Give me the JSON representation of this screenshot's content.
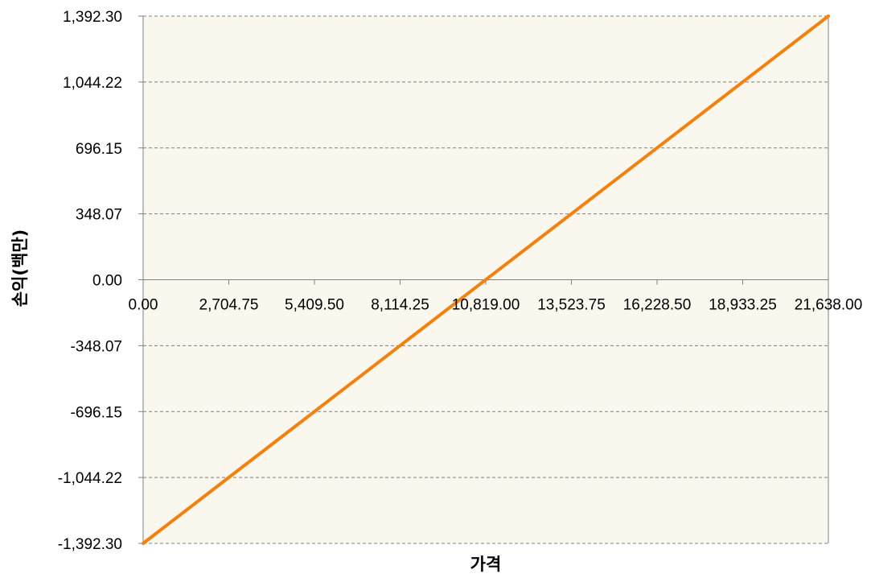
{
  "chart_data": {
    "type": "line",
    "xlabel": "가격",
    "ylabel": "손익(백만)",
    "xlim": [
      0,
      21638
    ],
    "ylim": [
      -1392.3,
      1392.3
    ],
    "x_ticks": [
      0,
      2704.75,
      5409.5,
      8114.25,
      10819,
      13523.75,
      16228.5,
      18933.25,
      21638
    ],
    "x_tick_labels": [
      "0.00",
      "2,704.75",
      "5,409.50",
      "8,114.25",
      "10,819.00",
      "13,523.75",
      "16,228.50",
      "18,933.25",
      "21,638.00"
    ],
    "y_ticks": [
      1392.3,
      1044.22,
      696.15,
      348.07,
      0,
      -348.07,
      -696.15,
      -1044.22,
      -1392.3
    ],
    "y_tick_labels": [
      "1,392.30",
      "1,044.22",
      "696.15",
      "348.07",
      "0.00",
      "-348.07",
      "-696.15",
      "-1,044.22",
      "-1,392.30"
    ],
    "grid": true,
    "legend": "none",
    "series": [
      {
        "x": [
          0,
          21638
        ],
        "y": [
          -1392.3,
          1392.3
        ],
        "color": "#F7800A"
      }
    ],
    "colors": {
      "plot_background": "#FAF7EE",
      "gridline": "#808080",
      "axis": "#808080"
    }
  }
}
